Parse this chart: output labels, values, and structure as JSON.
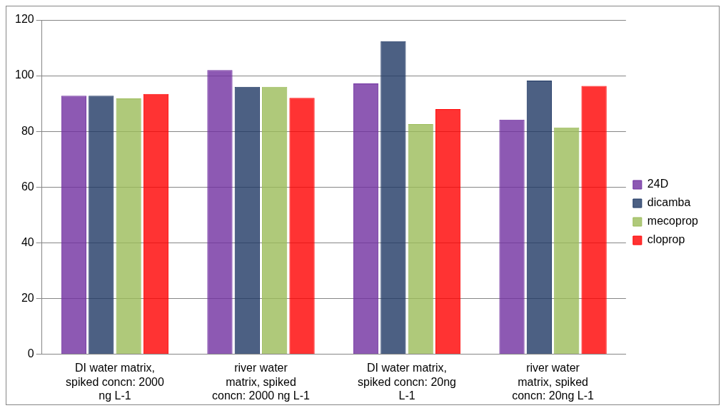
{
  "chart_data": {
    "type": "bar",
    "categories": [
      "DI water matrix, spiked concn: 2000 ng L-1",
      "river water matrix, spiked concn: 2000 ng L-1",
      "DI water matrix, spiked concn: 20ng L-1",
      "river water matrix, spiked concn: 20ng L-1"
    ],
    "series": [
      {
        "name": "24D",
        "color": "#7030a0",
        "values": [
          92.8,
          102,
          97.2,
          84.2
        ]
      },
      {
        "name": "dicamba",
        "color": "#1f3864",
        "values": [
          92.8,
          96,
          112.4,
          98.2
        ]
      },
      {
        "name": "mecoprop",
        "color": "#9bbb59",
        "values": [
          91.8,
          96,
          82.6,
          81.4
        ]
      },
      {
        "name": "cloprop",
        "color": "#ff0000",
        "values": [
          93.4,
          92,
          88,
          96.3
        ]
      }
    ],
    "ylim": [
      0,
      120
    ],
    "yticks": [
      0,
      20,
      40,
      60,
      80,
      100,
      120
    ],
    "grid": "y",
    "legend": "right"
  }
}
